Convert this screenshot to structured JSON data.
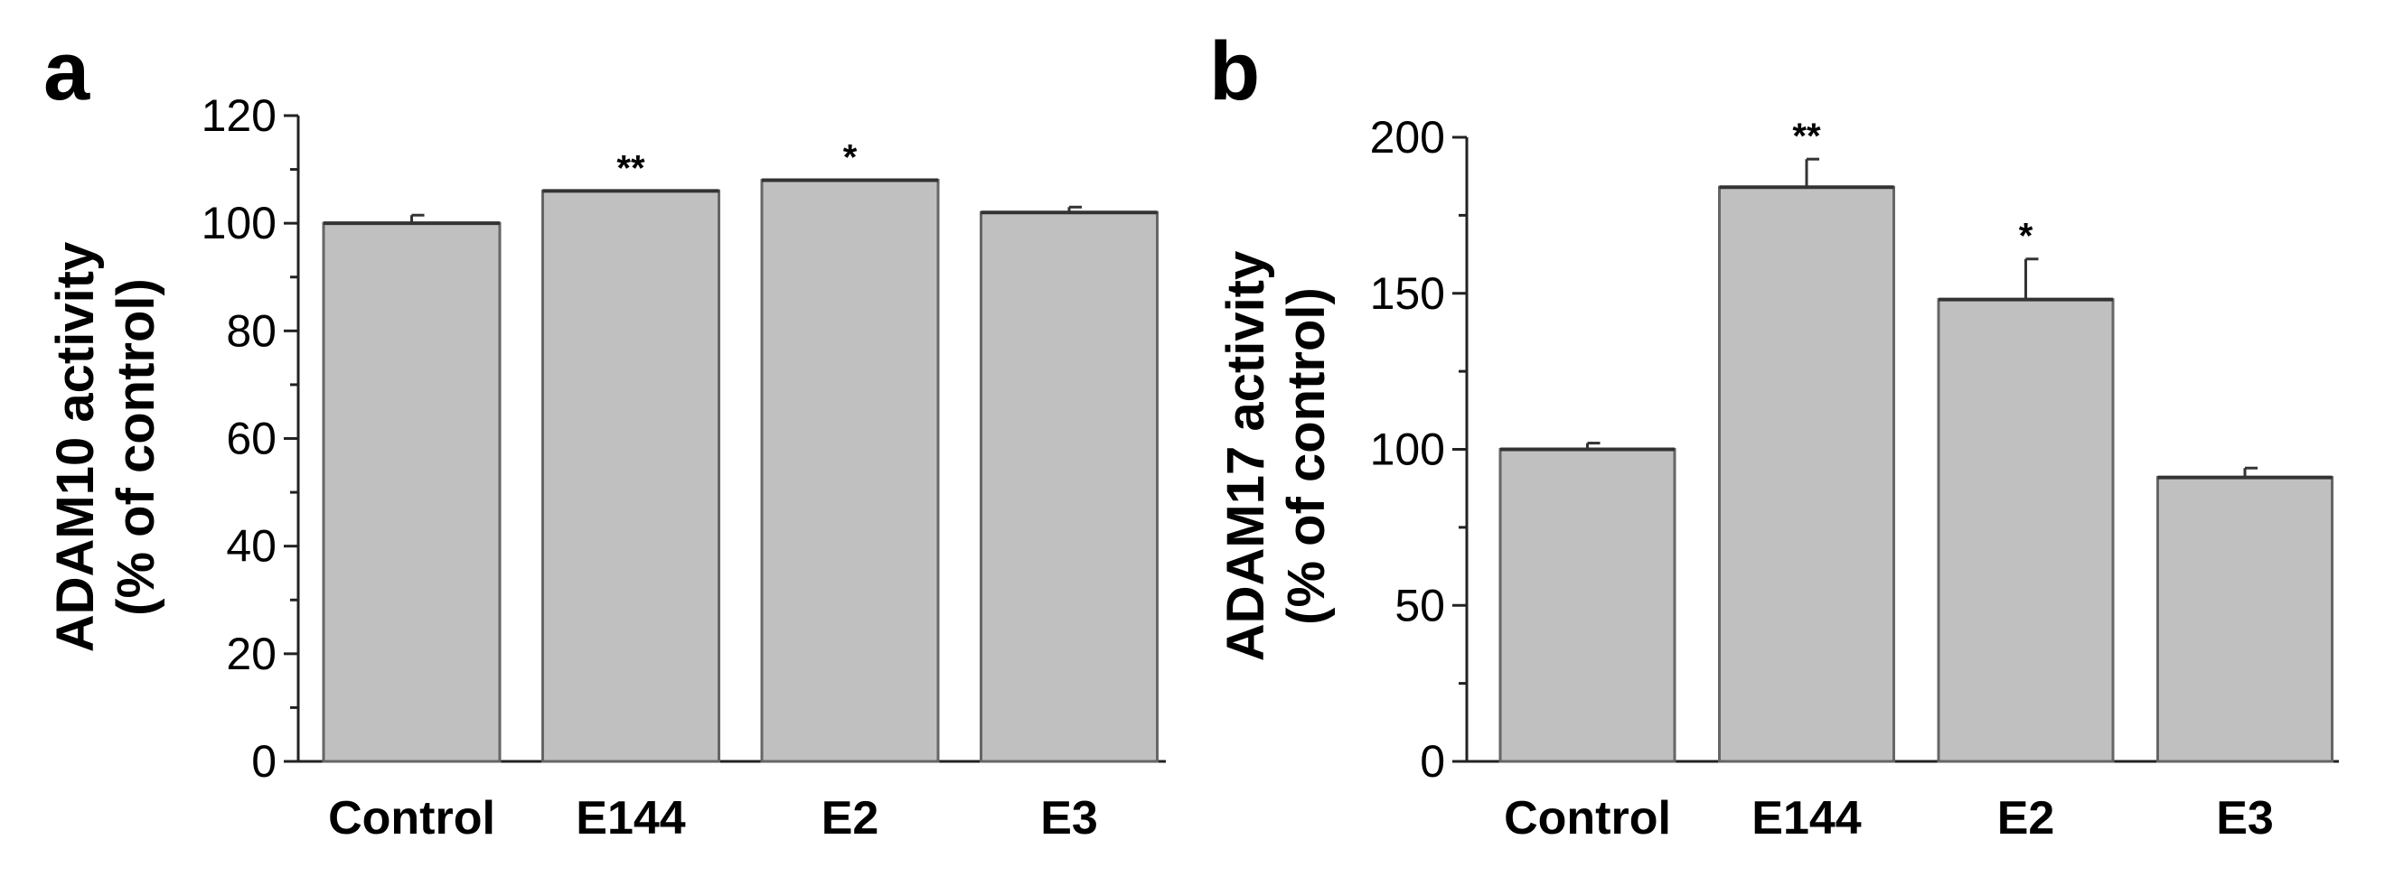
{
  "chart_data": [
    {
      "type": "bar",
      "panel_label": "a",
      "ylabel_line1": "ADAM10 activity",
      "ylabel_line2": "(% of control)",
      "categories": [
        "Control",
        "E144",
        "E2",
        "E3"
      ],
      "values": [
        100,
        106,
        108,
        102
      ],
      "errors": [
        1.5,
        0,
        0,
        1
      ],
      "significance": [
        "",
        "**",
        "*",
        ""
      ],
      "ylim": [
        0,
        120
      ],
      "yticks": [
        0,
        20,
        40,
        60,
        80,
        100,
        120
      ],
      "yticks_labels": [
        "0",
        "20",
        "40",
        "60",
        "80",
        "100",
        "120"
      ],
      "grid": false
    },
    {
      "type": "bar",
      "panel_label": "b",
      "ylabel_line1": "ADAM17 activity",
      "ylabel_line2": "(% of control)",
      "categories": [
        "Control",
        "E144",
        "E2",
        "E3"
      ],
      "values": [
        100,
        184,
        148,
        91
      ],
      "errors": [
        2,
        9,
        13,
        3
      ],
      "significance": [
        "",
        "**",
        "*",
        ""
      ],
      "ylim": [
        0,
        200
      ],
      "yticks": [
        0,
        50,
        100,
        150,
        200
      ],
      "yticks_labels": [
        "0",
        "50",
        "100",
        "150",
        "200"
      ],
      "grid": false
    }
  ],
  "colors": {
    "bar_fill": "#c0c0c0",
    "bar_edge": "#666666",
    "axis": "#222222",
    "text": "#000000"
  }
}
